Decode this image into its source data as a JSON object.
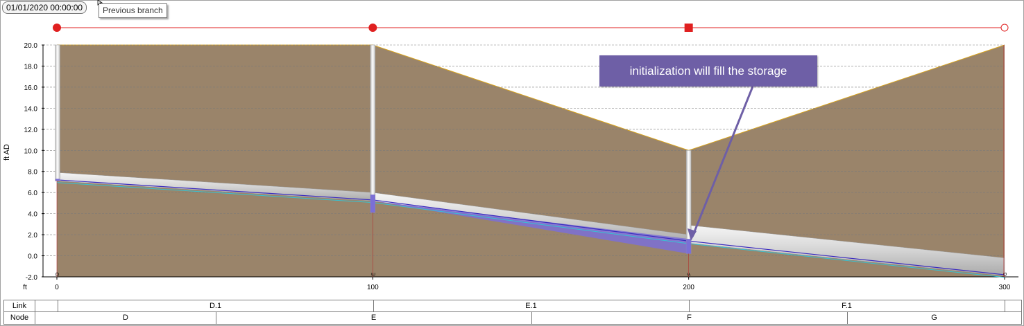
{
  "header": {
    "timestamp": "01/01/2020 00:00:00",
    "tooltip": "Previous branch"
  },
  "annotation": {
    "text": "initialization will fill the storage"
  },
  "colors": {
    "ground": "#9a846a",
    "ground_line": "#d9a520",
    "node_line": "#e02020",
    "water": "#7b6fd6",
    "pipe": "#d0d0d0"
  },
  "node_markers": [
    {
      "id": "D",
      "chainage": 0,
      "shape": "circle"
    },
    {
      "id": "E",
      "chainage": 100,
      "shape": "circle"
    },
    {
      "id": "F",
      "chainage": 200,
      "shape": "square"
    },
    {
      "id": "G",
      "chainage": 300,
      "shape": "circle-open"
    }
  ],
  "chart_data": {
    "type": "area",
    "ylabel": "ft AD",
    "xlabel": "ft",
    "ylim": [
      -2.0,
      20.0
    ],
    "xlim": [
      0,
      300
    ],
    "yticks": [
      "20.0",
      "18.0",
      "16.0",
      "14.0",
      "12.0",
      "10.0",
      "8.0",
      "6.0",
      "4.0",
      "2.0",
      "0.0",
      "-2.0"
    ],
    "xticks": [
      "0",
      "100",
      "200",
      "300"
    ],
    "grid": true,
    "ground_level": {
      "x": [
        0,
        100,
        200,
        300
      ],
      "y": [
        20.0,
        20.0,
        10.0,
        20.0
      ]
    },
    "nodes": [
      {
        "name": "D",
        "x": 0,
        "invert": 7.1
      },
      {
        "name": "E",
        "x": 100,
        "invert": 4.1
      },
      {
        "name": "F",
        "x": 200,
        "invert": 0.2
      },
      {
        "name": "G",
        "x": 300,
        "invert": -1.9
      }
    ],
    "pipes": [
      {
        "name": "D.1",
        "x": [
          0,
          100
        ],
        "invert": [
          7.1,
          5.2
        ],
        "soffit": [
          7.9,
          6.0
        ]
      },
      {
        "name": "E.1",
        "x": [
          100,
          200
        ],
        "invert": [
          5.2,
          1.2
        ],
        "soffit": [
          6.0,
          2.0
        ]
      },
      {
        "name": "F.1",
        "x": [
          200,
          300
        ],
        "invert": [
          1.2,
          -1.9
        ],
        "soffit": [
          2.9,
          -0.2
        ]
      }
    ],
    "water_level": {
      "x": [
        0,
        100,
        200,
        300
      ],
      "y": [
        7.2,
        5.3,
        1.4,
        -1.8
      ]
    }
  },
  "table": {
    "link_label": "Link",
    "node_label": "Node",
    "links": [
      "D.1",
      "E.1",
      "F.1"
    ],
    "nodes": [
      "D",
      "E",
      "F",
      "G"
    ]
  }
}
